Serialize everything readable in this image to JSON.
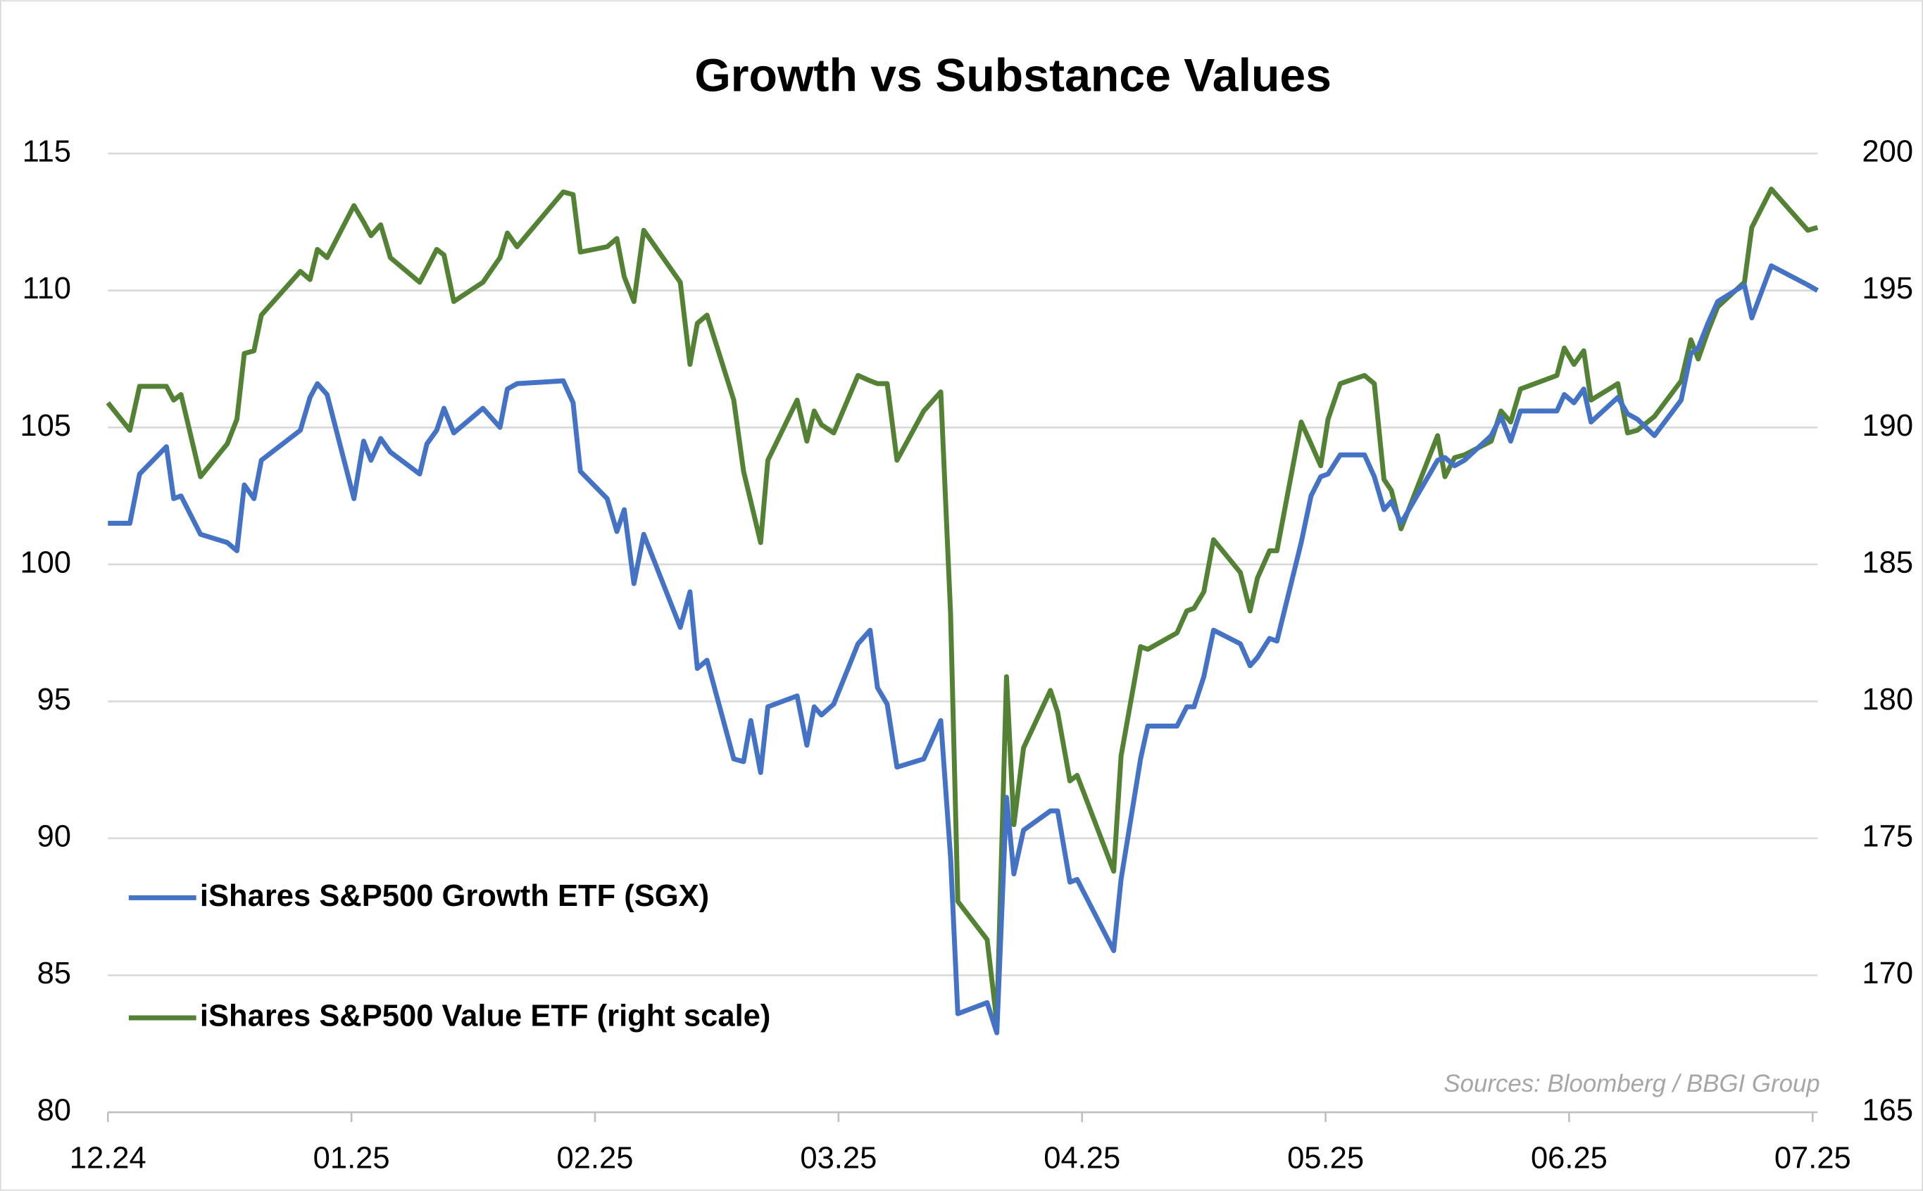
{
  "chart_data": {
    "type": "line",
    "title": "Growth vs Substance Values",
    "source": "Sources: Bloomberg / BBGI Group",
    "x": [
      0,
      0.09,
      0.13,
      0.24,
      0.27,
      0.3,
      0.38,
      0.49,
      0.53,
      0.56,
      0.6,
      0.63,
      0.79,
      0.83,
      0.86,
      0.9,
      1.01,
      1.05,
      1.08,
      1.12,
      1.16,
      1.28,
      1.31,
      1.35,
      1.38,
      1.42,
      1.54,
      1.61,
      1.64,
      1.68,
      1.87,
      1.91,
      1.94,
      2.05,
      2.09,
      2.12,
      2.16,
      2.2,
      2.35,
      2.39,
      2.42,
      2.46,
      2.57,
      2.61,
      2.64,
      2.68,
      2.71,
      2.83,
      2.87,
      2.9,
      2.93,
      2.98,
      3.08,
      3.13,
      3.16,
      3.2,
      3.24,
      3.35,
      3.42,
      3.46,
      3.49,
      3.61,
      3.65,
      3.69,
      3.72,
      3.76,
      3.87,
      3.9,
      3.95,
      3.98,
      4.13,
      4.16,
      4.24,
      4.27,
      4.39,
      4.43,
      4.46,
      4.5,
      4.54,
      4.65,
      4.69,
      4.72,
      4.77,
      4.8,
      4.9,
      4.94,
      4.98,
      5.01,
      5.06,
      5.16,
      5.2,
      5.24,
      5.27,
      5.31,
      5.46,
      5.49,
      5.53,
      5.57,
      5.68,
      5.72,
      5.76,
      5.8,
      5.95,
      5.98,
      6.02,
      6.06,
      6.09,
      6.2,
      6.24,
      6.28,
      6.35,
      6.46,
      6.5,
      6.53,
      6.57,
      6.61,
      6.72,
      6.75,
      6.83,
      6.98,
      7.02
    ],
    "xlim": [
      0,
      7.02
    ],
    "xticks": [
      {
        "value": 0,
        "label": "12.24"
      },
      {
        "value": 1,
        "label": "01.25"
      },
      {
        "value": 2,
        "label": "02.25"
      },
      {
        "value": 3,
        "label": "03.25"
      },
      {
        "value": 4,
        "label": "04.25"
      },
      {
        "value": 5,
        "label": "05.25"
      },
      {
        "value": 6,
        "label": "06.25"
      },
      {
        "value": 7,
        "label": "07.25"
      }
    ],
    "ylim": [
      80,
      115
    ],
    "yticks": [
      80,
      85,
      90,
      95,
      100,
      105,
      110,
      115
    ],
    "y2lim": [
      165,
      200
    ],
    "y2ticks": [
      165,
      170,
      175,
      180,
      185,
      190,
      195,
      200
    ],
    "grid": true,
    "legend": "lower left",
    "series": [
      {
        "name": "iShares S&P500 Growth ETF (SGX)",
        "color": "#4472c4",
        "values": [
          101.5,
          101.5,
          103.3,
          104.3,
          102.4,
          102.5,
          101.1,
          100.8,
          100.5,
          102.9,
          102.4,
          103.8,
          104.9,
          106.1,
          106.6,
          106.2,
          102.4,
          104.5,
          103.8,
          104.6,
          104.1,
          103.3,
          104.4,
          104.9,
          105.7,
          104.8,
          105.7,
          105.0,
          106.4,
          106.6,
          106.7,
          105.9,
          103.4,
          102.4,
          101.2,
          102.0,
          99.3,
          101.1,
          97.7,
          99.0,
          96.2,
          96.5,
          92.9,
          92.8,
          94.3,
          92.4,
          94.8,
          95.2,
          93.4,
          94.8,
          94.5,
          94.9,
          97.1,
          97.6,
          95.5,
          94.9,
          92.6,
          92.9,
          94.3,
          89.3,
          83.6,
          84.0,
          82.9,
          91.5,
          88.7,
          90.3,
          91.0,
          91.0,
          88.4,
          88.5,
          85.9,
          88.5,
          92.9,
          94.1,
          94.1,
          94.8,
          94.8,
          95.9,
          97.6,
          97.1,
          96.3,
          96.6,
          97.3,
          97.2,
          100.8,
          102.5,
          103.2,
          103.3,
          104.0,
          104.0,
          103.2,
          102.0,
          102.3,
          101.5,
          103.8,
          103.9,
          103.6,
          103.8,
          104.7,
          105.4,
          104.5,
          105.6,
          105.6,
          106.2,
          105.9,
          106.4,
          105.2,
          106.1,
          105.5,
          105.3,
          104.7,
          106.0,
          107.7,
          107.9,
          108.8,
          109.6,
          110.2,
          109.0,
          110.9,
          110.2,
          110.0
        ]
      },
      {
        "name": "iShares S&P500 Value ETF (right scale)",
        "color": "#548235",
        "axis": "y2",
        "values": [
          190.9,
          189.9,
          191.5,
          191.5,
          191.0,
          191.2,
          188.2,
          189.4,
          190.3,
          192.7,
          192.8,
          194.1,
          195.7,
          195.4,
          196.5,
          196.2,
          198.1,
          197.5,
          197.0,
          197.4,
          196.2,
          195.3,
          195.8,
          196.5,
          196.3,
          194.6,
          195.3,
          196.2,
          197.1,
          196.6,
          198.6,
          198.5,
          196.4,
          196.6,
          196.9,
          195.5,
          194.6,
          197.2,
          195.3,
          192.3,
          193.8,
          194.1,
          191.0,
          188.4,
          187.3,
          185.8,
          188.8,
          191.0,
          189.5,
          190.6,
          190.1,
          189.8,
          191.9,
          191.7,
          191.6,
          191.6,
          188.8,
          190.6,
          191.3,
          183.2,
          172.7,
          171.3,
          168.3,
          180.9,
          175.5,
          178.3,
          180.4,
          179.6,
          177.1,
          177.3,
          173.8,
          178.0,
          182.0,
          181.9,
          182.5,
          183.3,
          183.4,
          184.0,
          185.9,
          184.7,
          183.3,
          184.5,
          185.5,
          185.5,
          190.2,
          189.4,
          188.6,
          190.3,
          191.6,
          191.9,
          191.6,
          188.1,
          187.7,
          186.3,
          189.7,
          188.2,
          188.9,
          189.0,
          189.5,
          190.6,
          190.2,
          191.4,
          191.9,
          192.9,
          192.3,
          192.8,
          191.0,
          191.6,
          189.8,
          189.9,
          190.4,
          191.7,
          193.2,
          192.5,
          193.5,
          194.4,
          195.3,
          197.3,
          198.7,
          197.2,
          197.3
        ]
      }
    ]
  }
}
